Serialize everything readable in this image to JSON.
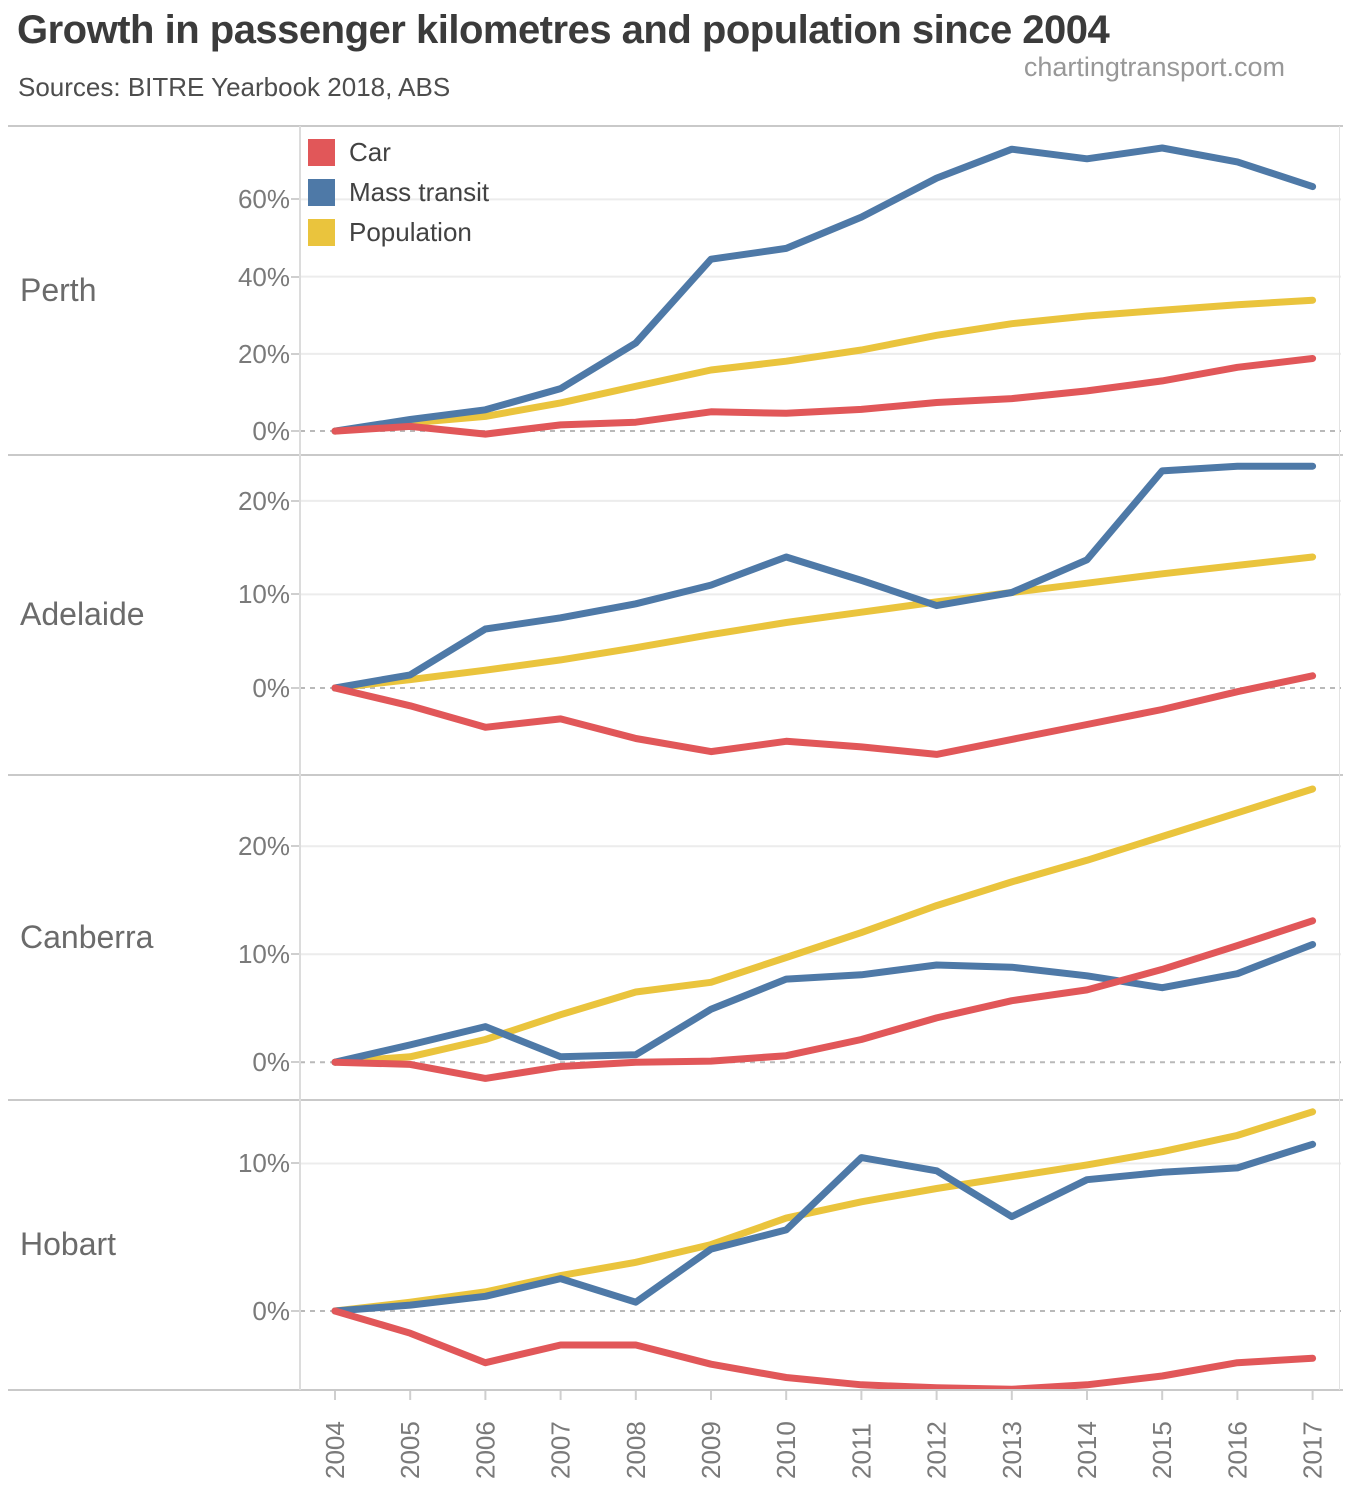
{
  "header": {
    "title": "Growth in passenger kilometres and population since 2004",
    "subtitle": "Sources: BITRE Yearbook 2018, ABS",
    "watermark": "chartingtransport.com"
  },
  "legend": {
    "items": [
      {
        "label": "Car",
        "color": "#e15759"
      },
      {
        "label": "Mass transit",
        "color": "#4e79a7"
      },
      {
        "label": "Population",
        "color": "#eac43d"
      }
    ]
  },
  "chart_data": {
    "type": "line",
    "title": "Growth in passenger kilometres and population since 2004",
    "x_label": "",
    "y_unit": "%",
    "grid": "on",
    "legend_position": "top-left of first panel",
    "x": [
      2004,
      2005,
      2006,
      2007,
      2008,
      2009,
      2010,
      2011,
      2012,
      2013,
      2014,
      2015,
      2016,
      2017
    ],
    "x_labels": [
      "2004",
      "2005",
      "2006",
      "2007",
      "2008",
      "2009",
      "2010",
      "2011",
      "2012",
      "2013",
      "2014",
      "2015",
      "2016",
      "2017"
    ],
    "panels": [
      {
        "label": "Perth",
        "ylim": [
          -6.2,
          79.0
        ],
        "yticks": [
          {
            "value": 60,
            "label": "60%"
          },
          {
            "value": 40,
            "label": "40%"
          },
          {
            "value": 20,
            "label": "20%"
          },
          {
            "value": 0,
            "label": "0%"
          }
        ],
        "series": [
          {
            "name": "Car",
            "values": [
              0,
              1.2,
              -0.8,
              1.6,
              2.3,
              5.0,
              4.6,
              5.6,
              7.4,
              8.4,
              10.4,
              13.0,
              16.5,
              18.8
            ]
          },
          {
            "name": "Mass transit",
            "values": [
              0,
              3.0,
              5.5,
              11.0,
              22.8,
              44.5,
              47.3,
              55.4,
              65.5,
              73.0,
              70.5,
              73.3,
              69.7,
              63.3
            ]
          },
          {
            "name": "Population",
            "values": [
              0,
              2.1,
              3.8,
              7.3,
              11.6,
              15.8,
              18.1,
              21.0,
              24.8,
              27.8,
              29.8,
              31.3,
              32.7,
              33.9
            ]
          }
        ]
      },
      {
        "label": "Adelaide",
        "ylim": [
          -9.3,
          24.9
        ],
        "yticks": [
          {
            "value": 20,
            "label": "20%"
          },
          {
            "value": 10,
            "label": "10%"
          },
          {
            "value": 0,
            "label": "0%"
          }
        ],
        "series": [
          {
            "name": "Car",
            "values": [
              0,
              -1.9,
              -4.2,
              -3.3,
              -5.4,
              -6.8,
              -5.7,
              -6.3,
              -7.1,
              -5.5,
              -3.9,
              -2.3,
              -0.4,
              1.3
            ]
          },
          {
            "name": "Mass transit",
            "values": [
              0,
              1.4,
              6.3,
              7.5,
              9.0,
              11.0,
              14.0,
              11.5,
              8.8,
              10.2,
              13.7,
              23.2,
              23.7,
              23.7
            ]
          },
          {
            "name": "Population",
            "values": [
              0,
              0.9,
              1.9,
              3.0,
              4.3,
              5.7,
              7.0,
              8.1,
              9.2,
              10.2,
              11.2,
              12.2,
              13.1,
              14.0
            ]
          }
        ]
      },
      {
        "label": "Canberra",
        "ylim": [
          -3.5,
          26.6
        ],
        "yticks": [
          {
            "value": 20,
            "label": "20%"
          },
          {
            "value": 10,
            "label": "10%"
          },
          {
            "value": 0,
            "label": "0%"
          }
        ],
        "series": [
          {
            "name": "Car",
            "values": [
              0,
              -0.2,
              -1.5,
              -0.4,
              0.0,
              0.1,
              0.6,
              2.1,
              4.1,
              5.7,
              6.7,
              8.6,
              10.8,
              13.1
            ]
          },
          {
            "name": "Mass transit",
            "values": [
              0,
              1.6,
              3.3,
              0.5,
              0.7,
              4.9,
              7.7,
              8.1,
              9.0,
              8.8,
              8.0,
              6.9,
              8.2,
              10.9
            ]
          },
          {
            "name": "Population",
            "values": [
              0,
              0.5,
              2.1,
              4.4,
              6.5,
              7.4,
              9.7,
              12.0,
              14.5,
              16.7,
              18.7,
              20.9,
              23.1,
              25.3
            ]
          }
        ]
      },
      {
        "label": "Hobart",
        "ylim": [
          -5.35,
          14.3
        ],
        "yticks": [
          {
            "value": 10,
            "label": "10%"
          },
          {
            "value": 0,
            "label": "0%"
          }
        ],
        "series": [
          {
            "name": "Car",
            "values": [
              0,
              -1.5,
              -3.5,
              -2.3,
              -2.3,
              -3.6,
              -4.5,
              -5.0,
              -5.2,
              -5.3,
              -5.0,
              -4.4,
              -3.5,
              -3.2
            ]
          },
          {
            "name": "Mass transit",
            "values": [
              0,
              0.4,
              1.0,
              2.2,
              0.6,
              4.2,
              5.5,
              10.4,
              9.5,
              6.4,
              8.9,
              9.4,
              9.7,
              11.3
            ]
          },
          {
            "name": "Population",
            "values": [
              0,
              0.6,
              1.3,
              2.4,
              3.3,
              4.5,
              6.3,
              7.4,
              8.3,
              9.1,
              9.9,
              10.8,
              11.9,
              13.5
            ]
          }
        ]
      }
    ]
  }
}
